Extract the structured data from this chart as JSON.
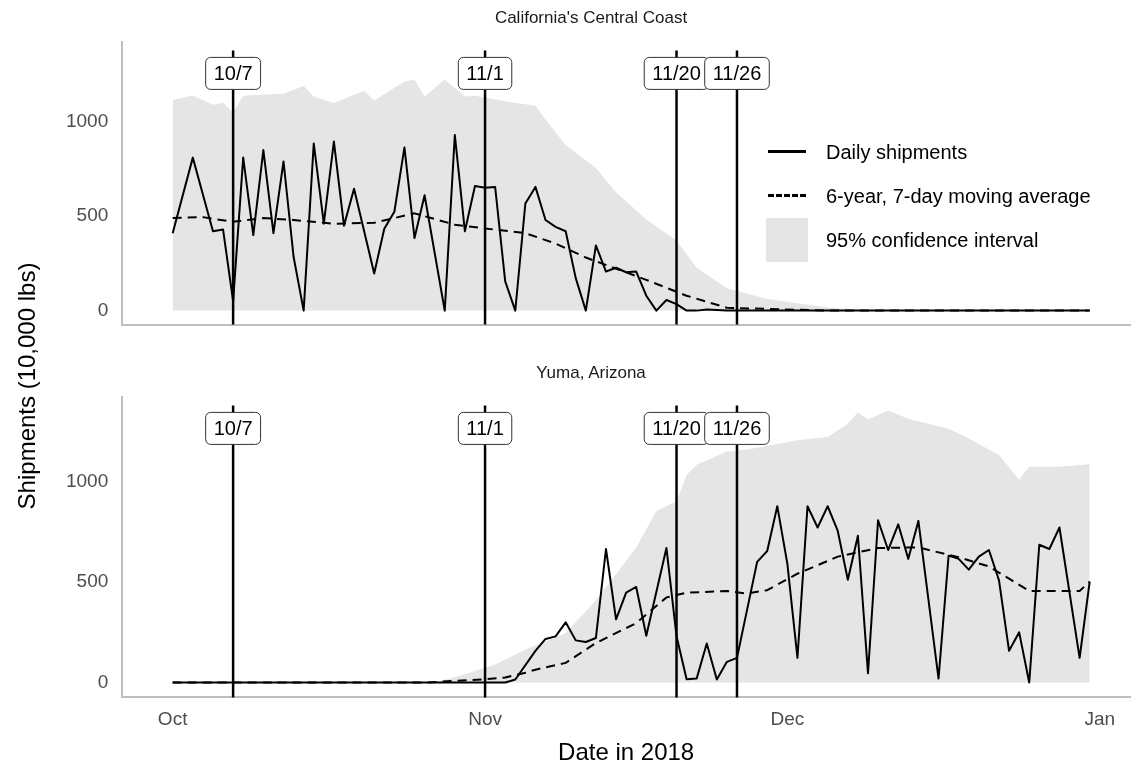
{
  "chart_data": [
    {
      "type": "line",
      "title": "California's Central Coast",
      "ylabel": "Shipments (10,000 lbs)",
      "legend": "right",
      "tick_labels": "y",
      "marker": "none",
      "xlim": [
        "2018-09-26",
        "2019-01-04"
      ],
      "ylim": [
        -74,
        1420
      ],
      "yticks": [
        0,
        500,
        1000
      ],
      "ref_lines": [
        {
          "axis": "x",
          "value": "2018-10-07",
          "label": "10/7"
        },
        {
          "axis": "x",
          "value": "2018-11-01",
          "label": "11/1"
        },
        {
          "axis": "x",
          "value": "2018-11-20",
          "label": "11/20"
        },
        {
          "axis": "x",
          "value": "2018-11-26",
          "label": "11/26"
        }
      ],
      "series": [
        {
          "name": "Daily shipments",
          "type": "line",
          "line_style": "solid",
          "color": "#000000",
          "x": [
            "2018-10-01",
            "2018-10-03",
            "2018-10-05",
            "2018-10-06",
            "2018-10-07",
            "2018-10-08",
            "2018-10-09",
            "2018-10-10",
            "2018-10-11",
            "2018-10-12",
            "2018-10-13",
            "2018-10-14",
            "2018-10-15",
            "2018-10-16",
            "2018-10-17",
            "2018-10-18",
            "2018-10-19",
            "2018-10-21",
            "2018-10-22",
            "2018-10-23",
            "2018-10-24",
            "2018-10-25",
            "2018-10-26",
            "2018-10-28",
            "2018-10-29",
            "2018-10-30",
            "2018-10-31",
            "2018-11-01",
            "2018-11-02",
            "2018-11-03",
            "2018-11-04",
            "2018-11-05",
            "2018-11-06",
            "2018-11-07",
            "2018-11-08",
            "2018-11-09",
            "2018-11-10",
            "2018-11-11",
            "2018-11-12",
            "2018-11-13",
            "2018-11-14",
            "2018-11-15",
            "2018-11-16",
            "2018-11-17",
            "2018-11-18",
            "2018-11-19",
            "2018-11-20",
            "2018-11-21",
            "2018-11-22",
            "2018-11-23",
            "2018-11-25",
            "2018-12-31"
          ],
          "values": [
            410,
            810,
            420,
            430,
            50,
            810,
            400,
            850,
            410,
            790,
            285,
            0,
            885,
            460,
            895,
            450,
            645,
            197,
            433,
            523,
            864,
            384,
            611,
            0,
            930,
            420,
            660,
            650,
            655,
            155,
            0,
            567,
            655,
            480,
            443,
            420,
            172,
            0,
            345,
            207,
            227,
            203,
            207,
            79,
            0,
            56,
            34,
            0,
            0,
            6,
            0,
            0
          ]
        },
        {
          "name": "6-year, 7-day moving average",
          "type": "line",
          "line_style": "dashed",
          "color": "#000000",
          "x": [
            "2018-10-01",
            "2018-10-04",
            "2018-10-07",
            "2018-10-10",
            "2018-10-13",
            "2018-10-17",
            "2018-10-21",
            "2018-10-25",
            "2018-10-29",
            "2018-11-01",
            "2018-11-05",
            "2018-11-08",
            "2018-11-11",
            "2018-11-17",
            "2018-11-21",
            "2018-11-25",
            "2018-12-05",
            "2018-12-31"
          ],
          "values": [
            490,
            495,
            470,
            490,
            480,
            460,
            465,
            515,
            455,
            435,
            410,
            355,
            281,
            163,
            79,
            15,
            0,
            0
          ]
        },
        {
          "name": "95% confidence interval",
          "type": "area",
          "color": "#e5e5e5",
          "x": [
            "2018-10-01",
            "2018-10-03",
            "2018-10-05",
            "2018-10-06",
            "2018-10-07",
            "2018-10-08",
            "2018-10-12",
            "2018-10-14",
            "2018-10-15",
            "2018-10-17",
            "2018-10-20",
            "2018-10-21",
            "2018-10-24",
            "2018-10-25",
            "2018-10-26",
            "2018-10-28",
            "2018-10-30",
            "2018-10-31",
            "2018-11-03",
            "2018-11-06",
            "2018-11-07",
            "2018-11-09",
            "2018-11-12",
            "2018-11-14",
            "2018-11-17",
            "2018-11-20",
            "2018-11-22",
            "2018-11-25",
            "2018-11-29",
            "2018-12-05",
            "2018-12-09",
            "2018-12-31"
          ],
          "values": [
            1115,
            1139,
            1090,
            1100,
            1049,
            1138,
            1148,
            1189,
            1133,
            1099,
            1164,
            1113,
            1213,
            1222,
            1133,
            1222,
            1133,
            1138,
            1108,
            1084,
            1010,
            877,
            755,
            627,
            483,
            371,
            227,
            118,
            61,
            16,
            0,
            0
          ]
        }
      ]
    },
    {
      "type": "line",
      "title": "Yuma, Arizona",
      "xlabel": "Date in 2018",
      "marker": "none",
      "xlim": [
        "2018-09-26",
        "2019-01-04"
      ],
      "xticks": [
        {
          "value": "2018-10-01",
          "label": "Oct"
        },
        {
          "value": "2018-11-01",
          "label": "Nov"
        },
        {
          "value": "2018-12-01",
          "label": "Dec"
        },
        {
          "value": "2019-01-01",
          "label": "Jan"
        }
      ],
      "ylim": [
        -74,
        1420
      ],
      "yticks": [
        0,
        500,
        1000
      ],
      "ref_lines": [
        {
          "axis": "x",
          "value": "2018-10-07",
          "label": "10/7"
        },
        {
          "axis": "x",
          "value": "2018-11-01",
          "label": "11/1"
        },
        {
          "axis": "x",
          "value": "2018-11-20",
          "label": "11/20"
        },
        {
          "axis": "x",
          "value": "2018-11-26",
          "label": "11/26"
        }
      ],
      "series": [
        {
          "type": "line",
          "line_style": "solid",
          "color": "#000000",
          "x": [
            "2018-10-01",
            "2018-11-03",
            "2018-11-04",
            "2018-11-06",
            "2018-11-07",
            "2018-11-08",
            "2018-11-09",
            "2018-11-10",
            "2018-11-11",
            "2018-11-12",
            "2018-11-13",
            "2018-11-14",
            "2018-11-15",
            "2018-11-16",
            "2018-11-17",
            "2018-11-19",
            "2018-11-20",
            "2018-11-21",
            "2018-11-22",
            "2018-11-23",
            "2018-11-24",
            "2018-11-25",
            "2018-11-26",
            "2018-11-28",
            "2018-11-29",
            "2018-11-30",
            "2018-12-01",
            "2018-12-02",
            "2018-12-03",
            "2018-12-04",
            "2018-12-05",
            "2018-12-06",
            "2018-12-07",
            "2018-12-08",
            "2018-12-09",
            "2018-12-10",
            "2018-12-11",
            "2018-12-12",
            "2018-12-13",
            "2018-12-14",
            "2018-12-16",
            "2018-12-17",
            "2018-12-18",
            "2018-12-19",
            "2018-12-20",
            "2018-12-21",
            "2018-12-22",
            "2018-12-23",
            "2018-12-24",
            "2018-12-25",
            "2018-12-26",
            "2018-12-27",
            "2018-12-28",
            "2018-12-30",
            "2018-12-31"
          ],
          "values": [
            0,
            0,
            15,
            158,
            217,
            230,
            300,
            210,
            202,
            222,
            665,
            315,
            448,
            476,
            233,
            670,
            231,
            16,
            20,
            194,
            15,
            103,
            123,
            601,
            655,
            878,
            591,
            123,
            878,
            772,
            878,
            755,
            512,
            731,
            46,
            808,
            660,
            788,
            616,
            805,
            20,
            632,
            616,
            562,
            627,
            660,
            509,
            158,
            250,
            0,
            686,
            665,
            772,
            123,
            502
          ]
        },
        {
          "type": "line",
          "line_style": "dashed",
          "color": "#000000",
          "x": [
            "2018-10-01",
            "2018-10-26",
            "2018-11-01",
            "2018-11-03",
            "2018-11-05",
            "2018-11-06",
            "2018-11-09",
            "2018-11-12",
            "2018-11-16",
            "2018-11-19",
            "2018-11-21",
            "2018-11-25",
            "2018-11-27",
            "2018-11-29",
            "2018-12-02",
            "2018-12-06",
            "2018-12-10",
            "2018-12-14",
            "2018-12-18",
            "2018-12-21",
            "2018-12-23",
            "2018-12-25",
            "2018-12-30",
            "2018-12-31"
          ],
          "values": [
            0,
            0,
            16,
            25,
            49,
            64,
            98,
            197,
            296,
            424,
            447,
            456,
            443,
            460,
            542,
            627,
            670,
            673,
            624,
            578,
            517,
            456,
            456,
            502
          ]
        },
        {
          "type": "area",
          "color": "#e5e5e5",
          "x": [
            "2018-10-01",
            "2018-10-27",
            "2018-10-30",
            "2018-11-02",
            "2018-11-05",
            "2018-11-09",
            "2018-11-12",
            "2018-11-16",
            "2018-11-18",
            "2018-11-20",
            "2018-11-21",
            "2018-11-22",
            "2018-11-25",
            "2018-11-27",
            "2018-12-02",
            "2018-12-05",
            "2018-12-07",
            "2018-12-08",
            "2018-12-09",
            "2018-12-11",
            "2018-12-13",
            "2018-12-17",
            "2018-12-19",
            "2018-12-22",
            "2018-12-24",
            "2018-12-25",
            "2018-12-28",
            "2018-12-31"
          ],
          "values": [
            0,
            0,
            41,
            90,
            164,
            246,
            410,
            673,
            854,
            903,
            1034,
            1084,
            1150,
            1160,
            1207,
            1223,
            1289,
            1346,
            1310,
            1355,
            1314,
            1264,
            1215,
            1133,
            1010,
            1075,
            1075,
            1087
          ]
        }
      ]
    }
  ]
}
